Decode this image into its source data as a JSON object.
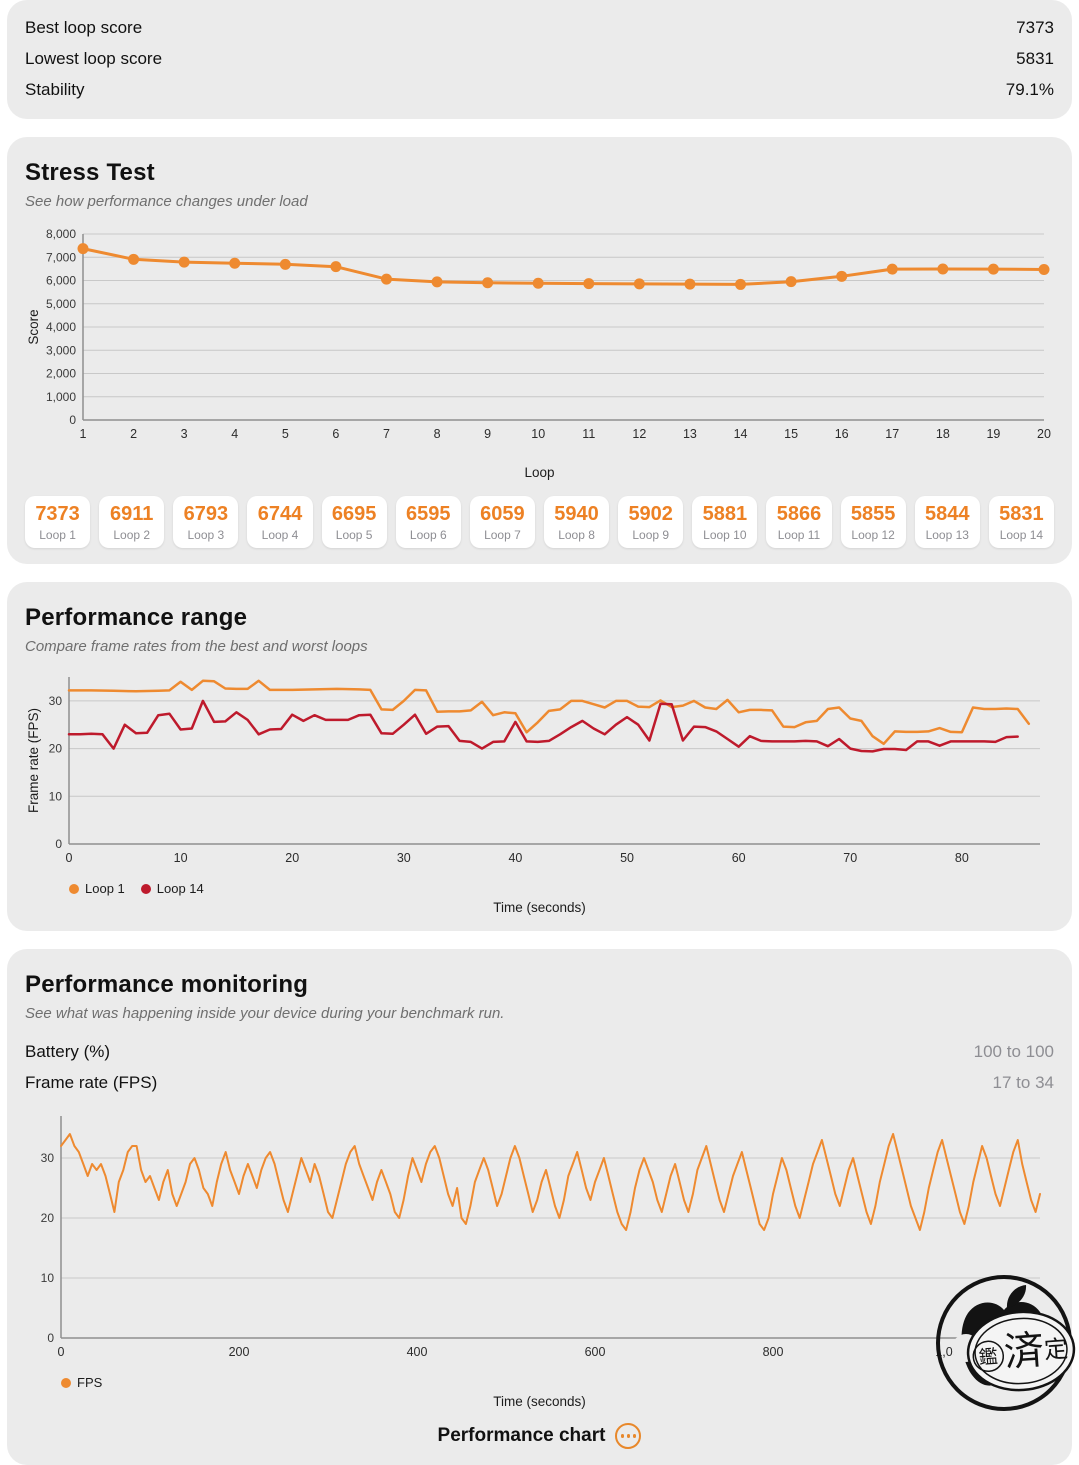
{
  "summary": {
    "rows": [
      {
        "label": "Best loop score",
        "value": "7373"
      },
      {
        "label": "Lowest loop score",
        "value": "5831"
      },
      {
        "label": "Stability",
        "value": "79.1%"
      }
    ]
  },
  "stress_test": {
    "title": "Stress Test",
    "subtitle": "See how performance changes under load",
    "loop_scores": [
      {
        "score": "7373",
        "label": "Loop 1"
      },
      {
        "score": "6911",
        "label": "Loop 2"
      },
      {
        "score": "6793",
        "label": "Loop 3"
      },
      {
        "score": "6744",
        "label": "Loop 4"
      },
      {
        "score": "6695",
        "label": "Loop 5"
      },
      {
        "score": "6595",
        "label": "Loop 6"
      },
      {
        "score": "6059",
        "label": "Loop 7"
      },
      {
        "score": "5940",
        "label": "Loop 8"
      },
      {
        "score": "5902",
        "label": "Loop 9"
      },
      {
        "score": "5881",
        "label": "Loop 10"
      },
      {
        "score": "5866",
        "label": "Loop 11"
      },
      {
        "score": "5855",
        "label": "Loop 12"
      },
      {
        "score": "5844",
        "label": "Loop 13"
      },
      {
        "score": "5831",
        "label": "Loop 14"
      }
    ]
  },
  "performance_range": {
    "title": "Performance range",
    "subtitle": "Compare frame rates from the best and worst loops"
  },
  "performance_monitoring": {
    "title": "Performance monitoring",
    "subtitle": "See what was happening inside your device during your benchmark run.",
    "rows": [
      {
        "label": "Battery (%)",
        "value": "100 to 100"
      },
      {
        "label": "Frame rate (FPS)",
        "value": "17 to 34"
      }
    ],
    "footer_label": "Performance chart"
  },
  "watermark": {
    "chars": [
      "鑑",
      "済",
      "定"
    ]
  },
  "colors": {
    "accent_orange": "#EE8A30",
    "series_red": "#BE1A2C",
    "card_bg": "#EBEBEB",
    "grid": "#C8C8C8",
    "axis": "#8F8F8F"
  },
  "chart_data": [
    {
      "type": "line",
      "title": "Stress Test loop scores",
      "xlabel": "Loop",
      "ylabel": "Score",
      "xlim": [
        1,
        20
      ],
      "ylim": [
        0,
        8000
      ],
      "xticks": [
        1,
        2,
        3,
        4,
        5,
        6,
        7,
        8,
        9,
        10,
        11,
        12,
        13,
        14,
        15,
        16,
        17,
        18,
        19,
        20
      ],
      "yticks": [
        0,
        1000,
        2000,
        3000,
        4000,
        5000,
        6000,
        7000,
        8000
      ],
      "grid": true,
      "margins": {
        "l": 58,
        "r": 10,
        "t": 10,
        "b": 36
      },
      "series": [
        {
          "name": "Score",
          "color": "#EE8A30",
          "width": 3,
          "markers": true,
          "legend": false,
          "x": [
            1,
            2,
            3,
            4,
            5,
            6,
            7,
            8,
            9,
            10,
            11,
            12,
            13,
            14,
            15,
            16,
            17,
            18,
            19,
            20
          ],
          "values": [
            7373,
            6911,
            6793,
            6744,
            6695,
            6595,
            6059,
            5940,
            5902,
            5881,
            5866,
            5855,
            5844,
            5831,
            5950,
            6180,
            6490,
            6495,
            6490,
            6475
          ]
        }
      ]
    },
    {
      "type": "line",
      "title": "Performance range",
      "xlabel": "Time (seconds)",
      "ylabel": "Frame rate (FPS)",
      "xlim": [
        0,
        87
      ],
      "ylim": [
        0,
        35
      ],
      "xticks": [
        0,
        10,
        20,
        30,
        40,
        50,
        60,
        70,
        80
      ],
      "yticks": [
        0,
        10,
        20,
        30
      ],
      "grid": true,
      "legend_position": "bottom-left",
      "margins": {
        "l": 44,
        "r": 14,
        "t": 8,
        "b": 30
      },
      "series": [
        {
          "name": "Loop 1",
          "color": "#EE8A30",
          "width": 2.5,
          "points": [
            [
              0,
              32.2
            ],
            [
              2,
              32.2
            ],
            [
              4,
              32.1
            ],
            [
              6,
              32
            ],
            [
              8,
              32.1
            ],
            [
              9,
              32.2
            ],
            [
              10,
              34
            ],
            [
              11,
              32.3
            ],
            [
              12,
              34.2
            ],
            [
              13,
              34.1
            ],
            [
              14,
              32.6
            ],
            [
              15,
              32.5
            ],
            [
              16,
              32.5
            ],
            [
              17,
              34.2
            ],
            [
              18,
              32.3
            ],
            [
              20,
              32.3
            ],
            [
              22,
              32.4
            ],
            [
              24,
              32.5
            ],
            [
              26,
              32.4
            ],
            [
              27,
              32.3
            ],
            [
              28,
              28.2
            ],
            [
              29,
              28.1
            ],
            [
              30,
              30
            ],
            [
              31,
              32.3
            ],
            [
              32,
              32.2
            ],
            [
              33,
              27.7
            ],
            [
              34,
              27.8
            ],
            [
              35,
              27.8
            ],
            [
              36,
              28
            ],
            [
              37,
              29.8
            ],
            [
              38,
              27
            ],
            [
              39,
              27.6
            ],
            [
              40,
              27.4
            ],
            [
              41,
              23.4
            ],
            [
              42,
              25.5
            ],
            [
              43,
              27.9
            ],
            [
              44,
              28.2
            ],
            [
              45,
              30
            ],
            [
              46,
              30
            ],
            [
              47,
              29.3
            ],
            [
              48,
              28.6
            ],
            [
              49,
              30
            ],
            [
              50,
              30
            ],
            [
              51,
              28.8
            ],
            [
              52,
              28.7
            ],
            [
              53,
              30.1
            ],
            [
              54,
              28.7
            ],
            [
              55,
              29
            ],
            [
              56,
              30
            ],
            [
              57,
              28.6
            ],
            [
              58,
              28.3
            ],
            [
              59,
              30.2
            ],
            [
              60,
              27.6
            ],
            [
              61,
              28.1
            ],
            [
              62,
              28.1
            ],
            [
              63,
              28
            ],
            [
              64,
              24.6
            ],
            [
              65,
              24.5
            ],
            [
              66,
              25.5
            ],
            [
              67,
              25.8
            ],
            [
              68,
              28.3
            ],
            [
              69,
              28.6
            ],
            [
              70,
              26.3
            ],
            [
              71,
              25.8
            ],
            [
              72,
              22.6
            ],
            [
              73,
              21
            ],
            [
              74,
              23.6
            ],
            [
              75,
              23.5
            ],
            [
              76,
              23.5
            ],
            [
              77,
              23.6
            ],
            [
              78,
              24.3
            ],
            [
              79,
              23.5
            ],
            [
              80,
              23.4
            ],
            [
              81,
              28.6
            ],
            [
              82,
              28.3
            ],
            [
              83,
              28.3
            ],
            [
              84,
              28.4
            ],
            [
              85,
              28.3
            ],
            [
              86,
              25.2
            ]
          ]
        },
        {
          "name": "Loop 14",
          "color": "#BE1A2C",
          "width": 2.5,
          "points": [
            [
              0,
              23
            ],
            [
              1,
              23
            ],
            [
              2,
              23.1
            ],
            [
              3,
              23
            ],
            [
              4,
              20
            ],
            [
              5,
              25
            ],
            [
              6,
              23.2
            ],
            [
              7,
              23.3
            ],
            [
              8,
              27
            ],
            [
              9,
              27.3
            ],
            [
              10,
              24
            ],
            [
              11,
              24.2
            ],
            [
              12,
              30
            ],
            [
              13,
              25.6
            ],
            [
              14,
              25.7
            ],
            [
              15,
              27.6
            ],
            [
              16,
              26
            ],
            [
              17,
              23
            ],
            [
              18,
              24
            ],
            [
              19,
              24.1
            ],
            [
              20,
              27.1
            ],
            [
              21,
              25.8
            ],
            [
              22,
              27
            ],
            [
              23,
              26
            ],
            [
              24,
              26
            ],
            [
              25,
              26
            ],
            [
              26,
              27
            ],
            [
              27,
              27.1
            ],
            [
              28,
              23.2
            ],
            [
              29,
              23.1
            ],
            [
              30,
              25
            ],
            [
              31,
              27.1
            ],
            [
              32,
              23.1
            ],
            [
              33,
              24.6
            ],
            [
              34,
              24.7
            ],
            [
              35,
              21.6
            ],
            [
              36,
              21.4
            ],
            [
              37,
              20
            ],
            [
              38,
              21.4
            ],
            [
              39,
              21.5
            ],
            [
              40,
              25.6
            ],
            [
              41,
              21.5
            ],
            [
              42,
              21.4
            ],
            [
              43,
              21.6
            ],
            [
              44,
              23
            ],
            [
              45,
              24.5
            ],
            [
              46,
              25.8
            ],
            [
              47,
              24.2
            ],
            [
              48,
              23
            ],
            [
              49,
              25
            ],
            [
              50,
              26.6
            ],
            [
              51,
              25
            ],
            [
              52,
              21.7
            ],
            [
              53,
              29.4
            ],
            [
              54,
              29.3
            ],
            [
              55,
              21.7
            ],
            [
              56,
              24.6
            ],
            [
              57,
              24.5
            ],
            [
              58,
              23.6
            ],
            [
              59,
              22
            ],
            [
              60,
              20.4
            ],
            [
              61,
              22.6
            ],
            [
              62,
              21.6
            ],
            [
              63,
              21.5
            ],
            [
              64,
              21.5
            ],
            [
              65,
              21.5
            ],
            [
              66,
              21.6
            ],
            [
              67,
              21.5
            ],
            [
              68,
              20.5
            ],
            [
              69,
              22
            ],
            [
              70,
              20
            ],
            [
              71,
              19.5
            ],
            [
              72,
              19.4
            ],
            [
              73,
              19.9
            ],
            [
              74,
              19.9
            ],
            [
              75,
              19.7
            ],
            [
              76,
              21.5
            ],
            [
              77,
              21.5
            ],
            [
              78,
              20.6
            ],
            [
              79,
              21.5
            ],
            [
              80,
              21.5
            ],
            [
              81,
              21.5
            ],
            [
              82,
              21.5
            ],
            [
              83,
              21.4
            ],
            [
              84,
              22.4
            ],
            [
              85,
              22.5
            ]
          ]
        }
      ]
    },
    {
      "type": "line",
      "title": "Performance monitoring — FPS",
      "xlabel": "Time (seconds)",
      "ylabel": "",
      "xlim": [
        0,
        1100
      ],
      "ylim": [
        0,
        37
      ],
      "xticks": [
        0,
        200,
        400,
        600,
        800,
        1000
      ],
      "yticks": [
        0,
        10,
        20,
        30
      ],
      "grid": true,
      "legend_position": "bottom-left",
      "margins": {
        "l": 36,
        "r": 14,
        "t": 10,
        "b": 30
      },
      "series": [
        {
          "name": "FPS",
          "color": "#EE8A30",
          "width": 2,
          "x_start": 0,
          "x_step": 5,
          "values": [
            32,
            33,
            34,
            32,
            31,
            29,
            27,
            29,
            28,
            29,
            27,
            24,
            21,
            26,
            28,
            31,
            32,
            32,
            28,
            26,
            27,
            25,
            23,
            26,
            28,
            24,
            22,
            24,
            26,
            29,
            30,
            28,
            25,
            24,
            22,
            26,
            29,
            31,
            28,
            26,
            24,
            27,
            29,
            27,
            25,
            28,
            30,
            31,
            29,
            26,
            23,
            21,
            24,
            27,
            30,
            28,
            26,
            29,
            27,
            24,
            21,
            20,
            23,
            26,
            29,
            31,
            32,
            29,
            27,
            25,
            23,
            26,
            28,
            26,
            24,
            21,
            20,
            23,
            27,
            30,
            28,
            26,
            29,
            31,
            32,
            30,
            27,
            24,
            22,
            25,
            20,
            19,
            22,
            26,
            28,
            30,
            28,
            25,
            22,
            24,
            27,
            30,
            32,
            30,
            27,
            24,
            21,
            23,
            26,
            28,
            25,
            22,
            20,
            23,
            27,
            29,
            31,
            28,
            25,
            23,
            26,
            28,
            30,
            27,
            24,
            21,
            19,
            18,
            21,
            25,
            28,
            30,
            28,
            26,
            23,
            21,
            24,
            27,
            29,
            26,
            23,
            21,
            24,
            28,
            30,
            32,
            29,
            26,
            23,
            21,
            24,
            27,
            29,
            31,
            28,
            25,
            22,
            19,
            18,
            20,
            24,
            27,
            30,
            28,
            25,
            22,
            20,
            23,
            26,
            29,
            31,
            33,
            30,
            27,
            24,
            22,
            25,
            28,
            30,
            27,
            24,
            21,
            19,
            22,
            26,
            29,
            32,
            34,
            31,
            28,
            25,
            22,
            20,
            18,
            21,
            25,
            28,
            31,
            33,
            30,
            27,
            24,
            21,
            19,
            22,
            26,
            29,
            32,
            30,
            27,
            24,
            22,
            25,
            28,
            31,
            33,
            29,
            26,
            23,
            21,
            24
          ]
        }
      ]
    }
  ]
}
